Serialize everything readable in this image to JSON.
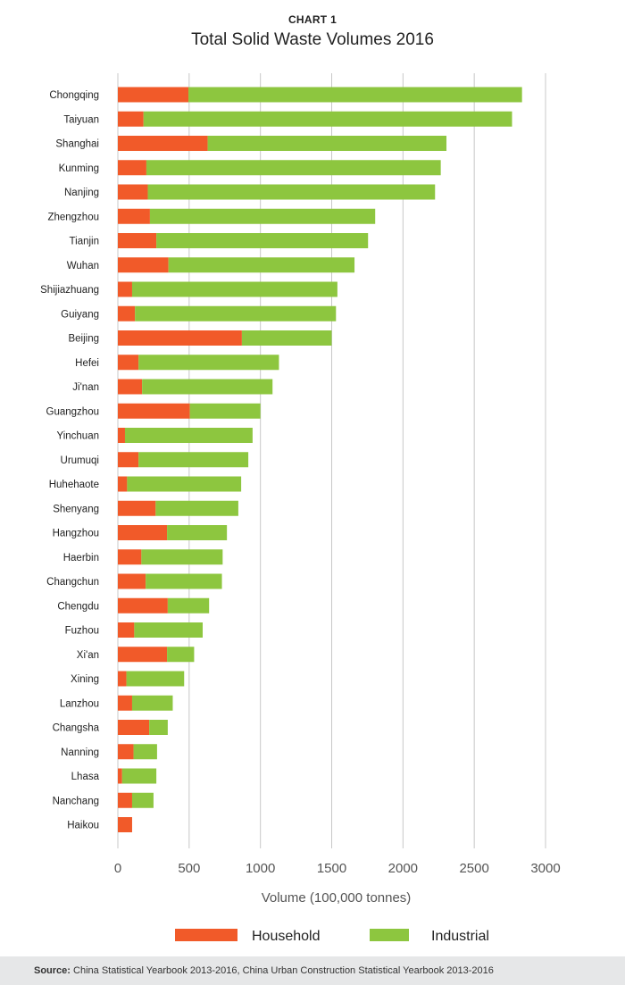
{
  "header": {
    "kicker": "CHART 1",
    "title": "Total Solid Waste Volumes 2016"
  },
  "source": {
    "label": "Source:",
    "text": "China Statistical Yearbook 2013-2016, China Urban Construction Statistical Yearbook 2013-2016"
  },
  "colors": {
    "household": "#f15a29",
    "industrial": "#8dc63f",
    "grid": "#c8c8c8",
    "tick_text": "#555555"
  },
  "chart_data": {
    "type": "bar",
    "orientation": "horizontal",
    "stacked": true,
    "title": "Total Solid Waste Volumes 2016",
    "xlabel": "Volume (100,000 tonnes)",
    "ylabel": "",
    "xlim": [
      0,
      3000
    ],
    "xticks": [
      0,
      500,
      1000,
      1500,
      2000,
      2500,
      3000
    ],
    "grid": "vertical",
    "legend_position": "bottom",
    "categories": [
      "Chongqing",
      "Taiyuan",
      "Shanghai",
      "Kunming",
      "Nanjing",
      "Zhengzhou",
      "Tianjin",
      "Wuhan",
      "Shijiazhuang",
      "Guiyang",
      "Beijing",
      "Hefei",
      "Ji'nan",
      "Guangzhou",
      "Yinchuan",
      "Urumuqi",
      "Huhehaote",
      "Shenyang",
      "Hangzhou",
      "Haerbin",
      "Changchun",
      "Chengdu",
      "Fuzhou",
      "Xi'an",
      "Xining",
      "Lanzhou",
      "Changsha",
      "Nanning",
      "Lhasa",
      "Nanchang",
      "Haikou"
    ],
    "series": [
      {
        "name": "Household",
        "values": [
          495,
          180,
          630,
          200,
          210,
          225,
          270,
          355,
          100,
          120,
          870,
          145,
          170,
          505,
          50,
          145,
          65,
          265,
          345,
          165,
          195,
          350,
          115,
          345,
          60,
          100,
          220,
          110,
          30,
          100,
          100
        ]
      },
      {
        "name": "Industrial",
        "values": [
          2340,
          2585,
          1675,
          2065,
          2015,
          1580,
          1485,
          1305,
          1440,
          1410,
          630,
          985,
          915,
          495,
          895,
          770,
          800,
          580,
          420,
          570,
          535,
          290,
          480,
          190,
          405,
          285,
          130,
          165,
          240,
          150,
          0
        ]
      }
    ]
  }
}
